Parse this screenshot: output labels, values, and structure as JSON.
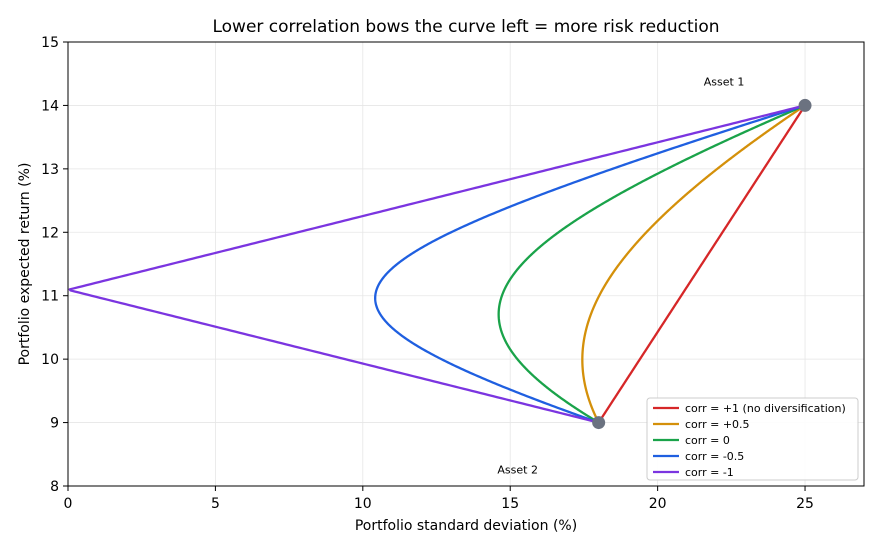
{
  "chart_data": {
    "type": "line",
    "title": "Lower correlation bows the curve left = more risk reduction",
    "xlabel": "Portfolio standard deviation (%)",
    "ylabel": "Portfolio expected return (%)",
    "xlim": [
      0,
      27
    ],
    "ylim": [
      8,
      15
    ],
    "x_ticks": [
      0,
      5,
      10,
      15,
      20,
      25
    ],
    "y_ticks": [
      8,
      9,
      10,
      11,
      12,
      13,
      14,
      15
    ],
    "grid": true,
    "legend_position": "lower-right",
    "assets": [
      {
        "name": "Asset 1",
        "sd": 25,
        "ret": 14
      },
      {
        "name": "Asset 2",
        "sd": 18,
        "ret": 9
      }
    ],
    "series": [
      {
        "name": "corr = +1 (no diversification)",
        "correlation": 1.0,
        "color": "#d62728"
      },
      {
        "name": "corr = +0.5",
        "correlation": 0.5,
        "color": "#d4900a"
      },
      {
        "name": "corr = 0",
        "correlation": 0.0,
        "color": "#1aa34a"
      },
      {
        "name": "corr = -0.5",
        "correlation": -0.5,
        "color": "#1f5fe0"
      },
      {
        "name": "corr = -1",
        "correlation": -1.0,
        "color": "#7b35e0"
      }
    ],
    "marker_color": "#6b7280"
  }
}
